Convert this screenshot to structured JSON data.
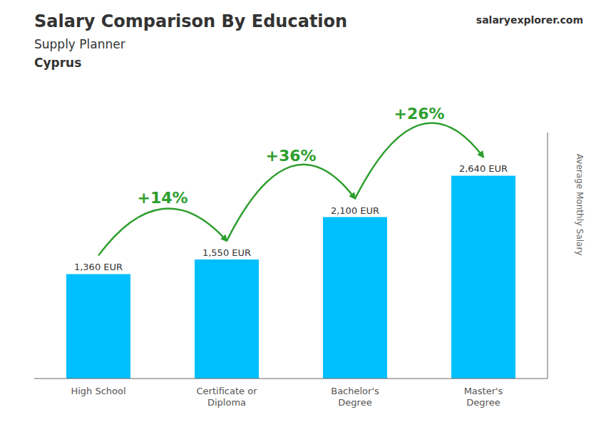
{
  "chart_data": {
    "type": "bar",
    "title": "Salary Comparison By Education",
    "subtitle": [
      "Supply Planner",
      "Cyprus"
    ],
    "y_label": "Average Monthly Salary",
    "categories": [
      "High School",
      "Certificate or\nDiploma",
      "Bachelor's\nDegree",
      "Master's\nDegree"
    ],
    "values": [
      1360,
      1550,
      2100,
      2640
    ],
    "value_labels": [
      "1,360 EUR",
      "1,550 EUR",
      "2,100 EUR",
      "2,640 EUR"
    ],
    "data_labels": true,
    "color": "#00bfff",
    "ylim": [
      0,
      3200
    ],
    "tick_labels": "x",
    "grid": false,
    "annotations": [
      {
        "text": "salaryexplorer.com"
      },
      {
        "text": "+14%",
        "from": 0,
        "to": 1
      },
      {
        "text": "+36%",
        "from": 1,
        "to": 2
      },
      {
        "text": "+26%",
        "from": 2,
        "to": 3
      }
    ]
  }
}
